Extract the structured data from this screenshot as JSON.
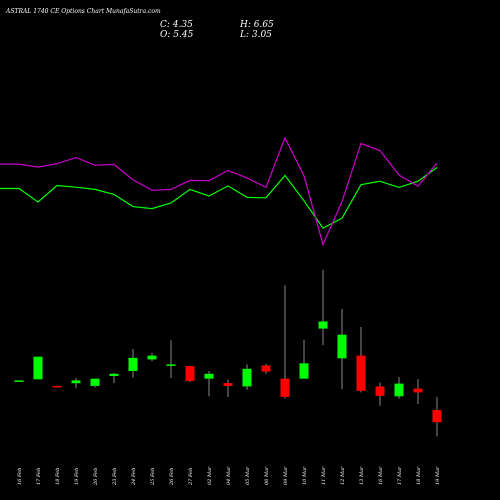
{
  "chart_data": {
    "type": "candlestick",
    "title": "ASTRAL 1740 CE Options Chart MunafaSutra.com",
    "ohlc_labels": {
      "open": "O: 5.45",
      "high": "H: 6.65",
      "close": "C: 4.35",
      "low": "L: 3.05"
    },
    "categories": [
      "16 Feb",
      "17 Feb",
      "18 Feb",
      "19 Feb",
      "20 Feb",
      "23 Feb",
      "24 Feb",
      "25 Feb",
      "26 Feb",
      "27 Feb",
      "02 Mar",
      "04 Mar",
      "05 Mar",
      "06 Mar",
      "09 Mar",
      "10 Mar",
      "11 Mar",
      "12 Mar",
      "13 Mar",
      "16 Mar",
      "17 Mar",
      "18 Mar",
      "19 Mar"
    ],
    "candles": [
      {
        "o": 8.1,
        "h": 8.15,
        "l": 8.05,
        "c": 8.15
      },
      {
        "o": 8.25,
        "h": 10.3,
        "l": 8.25,
        "c": 10.3
      },
      {
        "o": 7.65,
        "h": 7.65,
        "l": 7.55,
        "c": 7.6
      },
      {
        "o": 7.9,
        "h": 8.35,
        "l": 7.45,
        "c": 8.15
      },
      {
        "o": 7.65,
        "h": 8.3,
        "l": 7.5,
        "c": 8.3
      },
      {
        "o": 8.55,
        "h": 8.85,
        "l": 7.9,
        "c": 8.75
      },
      {
        "o": 9.0,
        "h": 11.0,
        "l": 8.4,
        "c": 10.2
      },
      {
        "o": 10.05,
        "h": 10.65,
        "l": 9.9,
        "c": 10.4
      },
      {
        "o": 9.6,
        "h": 11.8,
        "l": 8.35,
        "c": 9.6
      },
      {
        "o": 9.45,
        "h": 9.45,
        "l": 8.0,
        "c": 8.1
      },
      {
        "o": 8.3,
        "h": 9.0,
        "l": 6.7,
        "c": 8.75
      },
      {
        "o": 7.9,
        "h": 8.2,
        "l": 6.65,
        "c": 7.65
      },
      {
        "o": 7.6,
        "h": 9.6,
        "l": 7.3,
        "c": 9.2
      },
      {
        "o": 9.5,
        "h": 9.65,
        "l": 8.75,
        "c": 8.95
      },
      {
        "o": 8.3,
        "h": 16.8,
        "l": 6.5,
        "c": 6.65
      },
      {
        "o": 8.3,
        "h": 11.85,
        "l": 8.3,
        "c": 9.7
      },
      {
        "o": 12.85,
        "h": 18.2,
        "l": 11.35,
        "c": 13.5
      },
      {
        "o": 10.15,
        "h": 14.65,
        "l": 7.35,
        "c": 12.3
      },
      {
        "o": 10.4,
        "h": 13.0,
        "l": 7.05,
        "c": 7.2
      },
      {
        "o": 7.6,
        "h": 7.95,
        "l": 5.85,
        "c": 6.75
      },
      {
        "o": 6.7,
        "h": 8.45,
        "l": 6.5,
        "c": 7.85
      },
      {
        "o": 7.4,
        "h": 8.25,
        "l": 6.0,
        "c": 7.05
      },
      {
        "o": 5.45,
        "h": 6.65,
        "l": 3.05,
        "c": 4.35
      }
    ],
    "ma_green": [
      255.3,
      255.3,
      237.3,
      259.4,
      257.1,
      254.2,
      247.4,
      231.2,
      228.6,
      236.0,
      254.2,
      245.3,
      258.8,
      243.4,
      243.0,
      272.7,
      239.0,
      202.5,
      215.8,
      260.4,
      265.0,
      256.8,
      265.1,
      283.3
    ],
    "ma_magenta": [
      287.8,
      287.8,
      283.9,
      288.4,
      296.5,
      286.4,
      287.5,
      267.0,
      253.0,
      254.2,
      266.1,
      265.8,
      279.3,
      269.5,
      256.9,
      323.0,
      272.3,
      180.7,
      238.0,
      315.3,
      306.0,
      273.3,
      258.5,
      289.4
    ],
    "price_axis": {
      "min": 0,
      "max": 20
    },
    "colors": {
      "background": "#000000",
      "up": "#00ff00",
      "down": "#ff0000",
      "wick": "#888888",
      "ma_green": "#00ff00",
      "ma_magenta": "#cc00cc",
      "text": "#ffffff"
    }
  }
}
